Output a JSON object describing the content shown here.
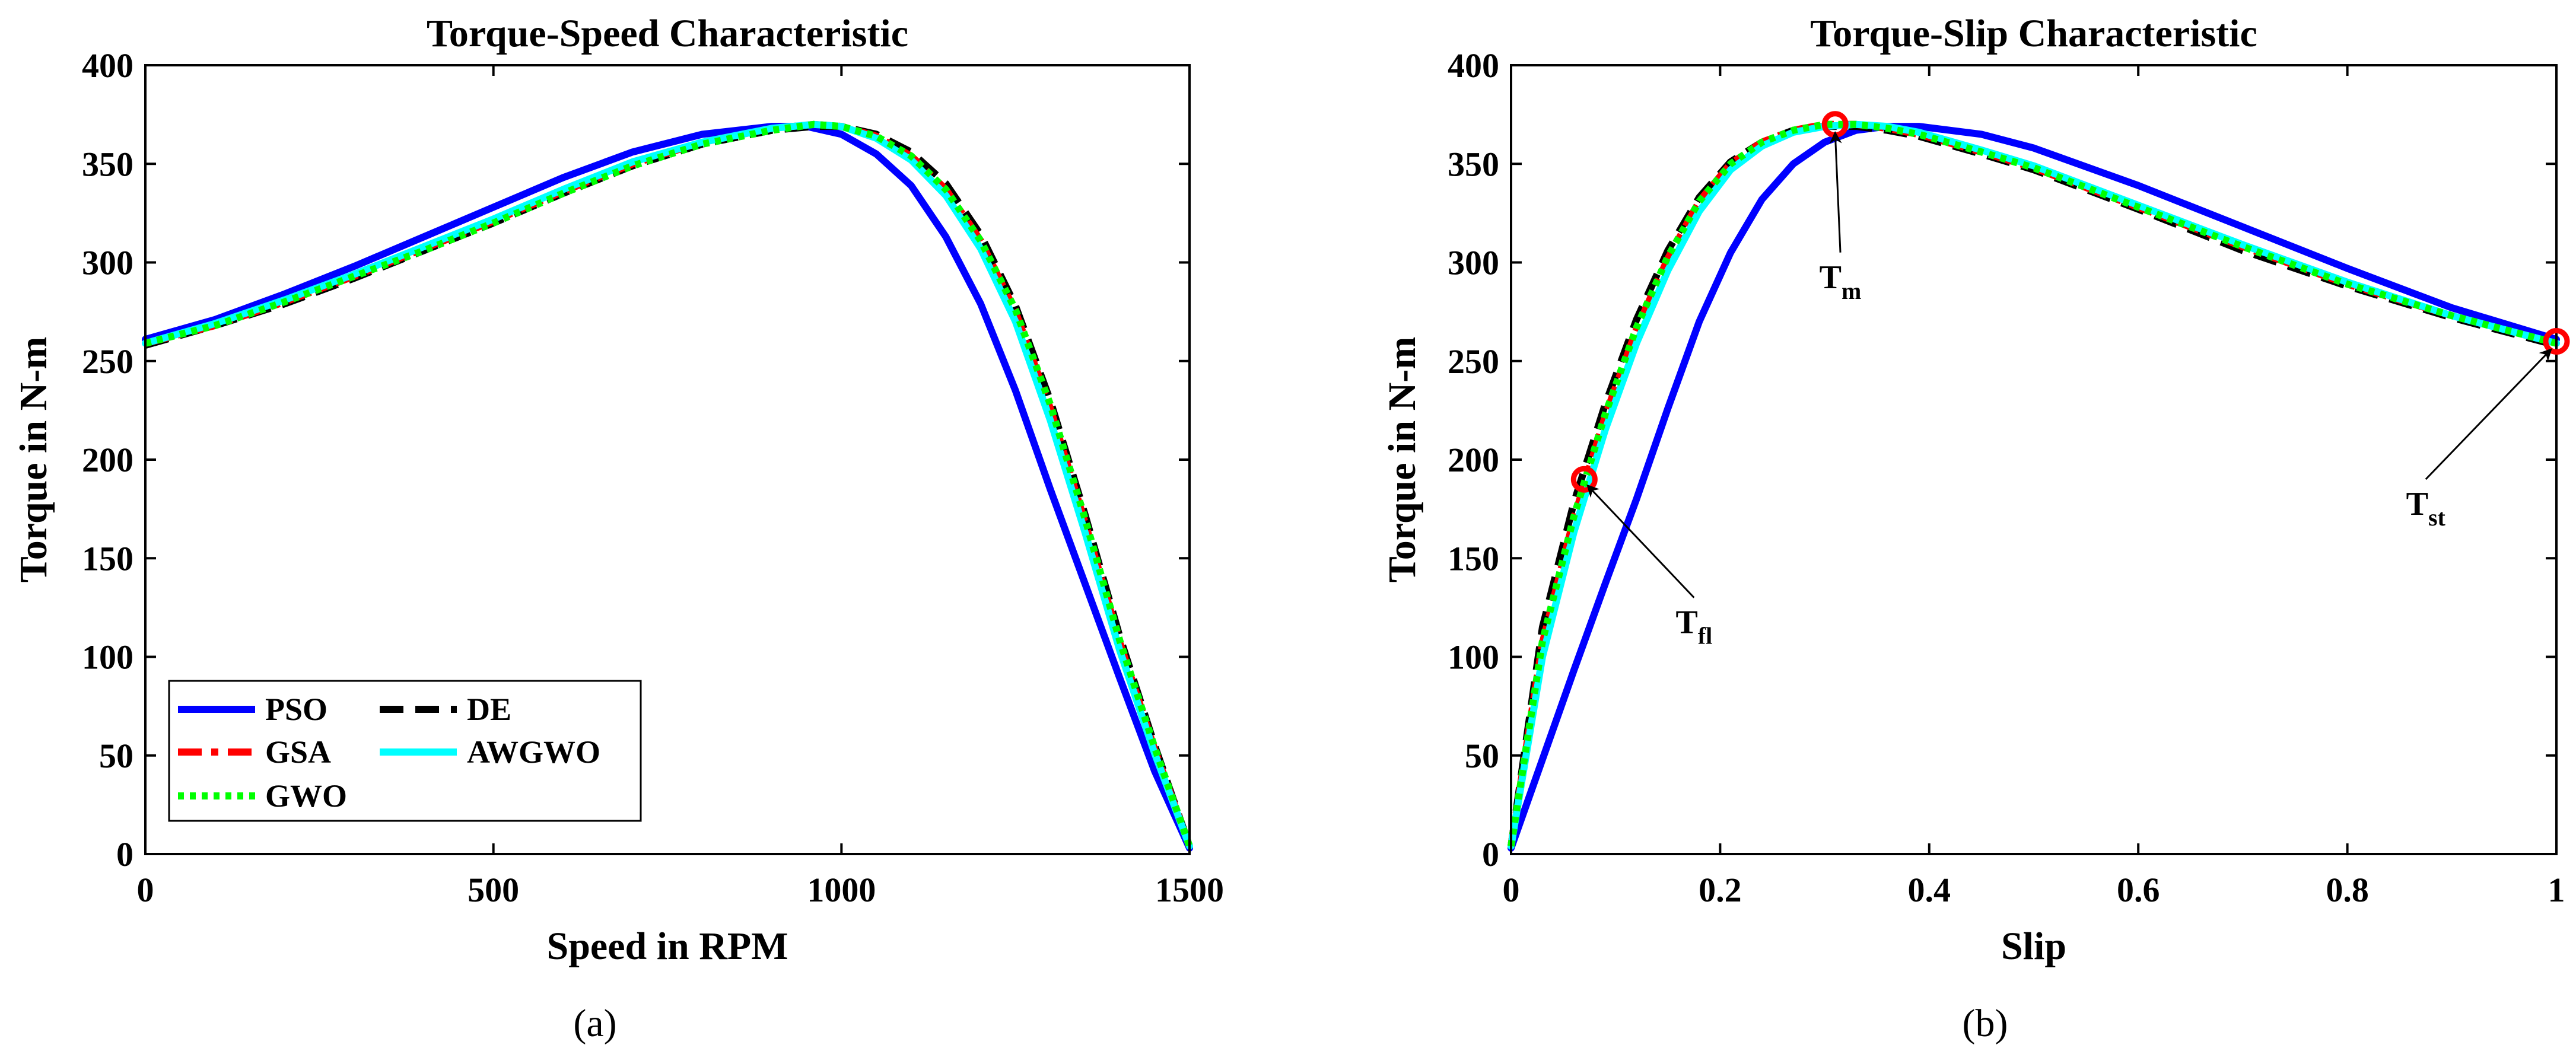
{
  "colors": {
    "PSO": "#0000ff",
    "GSA": "#ff0000",
    "GWO": "#00ff00",
    "DE": "#000000",
    "AWGWO": "#00ffff",
    "marker": "#ff0000"
  },
  "chart_data": [
    {
      "type": "line",
      "title": "Torque-Speed Characteristic",
      "xlabel": "Speed in RPM",
      "ylabel": "Torque in N-m",
      "xlim": [
        0,
        1500
      ],
      "ylim": [
        0,
        400
      ],
      "xticks": [
        0,
        500,
        1000,
        1500
      ],
      "xtick_labels": [
        "0",
        "500",
        "1000",
        "1500"
      ],
      "yticks": [
        0,
        50,
        100,
        150,
        200,
        250,
        300,
        350,
        400
      ],
      "ytick_labels": [
        "0",
        "50",
        "100",
        "150",
        "200",
        "250",
        "300",
        "350",
        "400"
      ],
      "caption": "(a)",
      "legend": {
        "placement": "bottom-left",
        "entries": [
          {
            "name": "PSO",
            "label": "PSO"
          },
          {
            "name": "DE",
            "label": "DE"
          },
          {
            "name": "GSA",
            "label": "GSA"
          },
          {
            "name": "AWGWO",
            "label": "AWGWO"
          },
          {
            "name": "GWO",
            "label": "GWO"
          }
        ]
      },
      "series": [
        {
          "name": "PSO",
          "style": "solid",
          "x": [
            0,
            100,
            200,
            300,
            400,
            500,
            600,
            700,
            800,
            900,
            950,
            1000,
            1050,
            1100,
            1150,
            1200,
            1250,
            1300,
            1350,
            1400,
            1450,
            1500
          ],
          "y": [
            261,
            271,
            284,
            298,
            313,
            328,
            343,
            356,
            365,
            369,
            369,
            365,
            355,
            339,
            313,
            279,
            235,
            185,
            137,
            89,
            42,
            3
          ]
        },
        {
          "name": "DE",
          "style": "dashed",
          "x": [
            0,
            100,
            200,
            300,
            400,
            500,
            600,
            700,
            800,
            900,
            960,
            1000,
            1050,
            1100,
            1150,
            1200,
            1250,
            1300,
            1350,
            1400,
            1450,
            1500
          ],
          "y": [
            258,
            268,
            279,
            292,
            306,
            320,
            335,
            349,
            360,
            367,
            369,
            369,
            365,
            356,
            340,
            314,
            278,
            230,
            172,
            110,
            55,
            4
          ]
        },
        {
          "name": "GSA",
          "style": "dashdot",
          "x": [
            0,
            100,
            200,
            300,
            400,
            500,
            600,
            700,
            800,
            900,
            960,
            1000,
            1050,
            1100,
            1150,
            1200,
            1250,
            1300,
            1350,
            1400,
            1450,
            1500
          ],
          "y": [
            259,
            268,
            280,
            293,
            307,
            321,
            336,
            350,
            361,
            368,
            370,
            369,
            364,
            354,
            337,
            311,
            275,
            226,
            168,
            107,
            53,
            4
          ]
        },
        {
          "name": "AWGWO",
          "style": "solid",
          "x": [
            0,
            100,
            200,
            300,
            400,
            500,
            600,
            700,
            800,
            900,
            960,
            1000,
            1050,
            1100,
            1150,
            1200,
            1250,
            1300,
            1350,
            1400,
            1450,
            1500
          ],
          "y": [
            259,
            269,
            281,
            294,
            308,
            322,
            337,
            351,
            361,
            368,
            370,
            369,
            363,
            352,
            334,
            307,
            270,
            220,
            163,
            103,
            51,
            4
          ]
        },
        {
          "name": "GWO",
          "style": "dotted",
          "x": [
            0,
            100,
            200,
            300,
            400,
            500,
            600,
            700,
            800,
            900,
            960,
            1000,
            1050,
            1100,
            1150,
            1200,
            1250,
            1300,
            1350,
            1400,
            1450,
            1500
          ],
          "y": [
            259,
            268,
            280,
            293,
            306,
            320,
            335,
            349,
            360,
            367,
            370,
            369,
            364,
            354,
            337,
            311,
            276,
            228,
            170,
            108,
            54,
            4
          ]
        }
      ]
    },
    {
      "type": "line",
      "title": "Torque-Slip Characteristic",
      "xlabel": "Slip",
      "ylabel": "Torque in N-m",
      "xlim": [
        0,
        1
      ],
      "ylim": [
        0,
        400
      ],
      "xticks": [
        0,
        0.2,
        0.4,
        0.6,
        0.8,
        1
      ],
      "xtick_labels": [
        "0",
        "0.2",
        "0.4",
        "0.6",
        "0.8",
        "1"
      ],
      "yticks": [
        0,
        50,
        100,
        150,
        200,
        250,
        300,
        350,
        400
      ],
      "ytick_labels": [
        "0",
        "50",
        "100",
        "150",
        "200",
        "250",
        "300",
        "350",
        "400"
      ],
      "caption": "(b)",
      "series": [
        {
          "name": "PSO",
          "style": "solid",
          "x": [
            0,
            0.03,
            0.06,
            0.09,
            0.12,
            0.15,
            0.18,
            0.21,
            0.24,
            0.27,
            0.3,
            0.33,
            0.36,
            0.39,
            0.45,
            0.5,
            0.6,
            0.7,
            0.8,
            0.9,
            1.0
          ],
          "y": [
            3,
            48,
            93,
            137,
            180,
            226,
            270,
            305,
            332,
            350,
            361,
            367,
            369,
            369,
            365,
            358,
            339,
            318,
            297,
            277,
            261
          ]
        },
        {
          "name": "DE",
          "style": "dashed",
          "x": [
            0,
            0.03,
            0.06,
            0.09,
            0.12,
            0.15,
            0.18,
            0.21,
            0.24,
            0.27,
            0.3,
            0.33,
            0.36,
            0.39,
            0.45,
            0.5,
            0.6,
            0.7,
            0.8,
            0.9,
            1.0
          ],
          "y": [
            4,
            115,
            178,
            228,
            271,
            306,
            333,
            351,
            361,
            367,
            369,
            369,
            367,
            364,
            355,
            347,
            327,
            306,
            288,
            272,
            258
          ]
        },
        {
          "name": "GSA",
          "style": "dashdot",
          "x": [
            0,
            0.03,
            0.06,
            0.09,
            0.12,
            0.15,
            0.18,
            0.21,
            0.24,
            0.27,
            0.3,
            0.33,
            0.36,
            0.39,
            0.45,
            0.5,
            0.6,
            0.7,
            0.8,
            0.9,
            1.0
          ],
          "y": [
            4,
            107,
            170,
            222,
            266,
            302,
            331,
            350,
            361,
            367,
            370,
            370,
            368,
            365,
            356,
            348,
            328,
            308,
            289,
            273,
            259
          ]
        },
        {
          "name": "AWGWO",
          "style": "solid",
          "x": [
            0,
            0.03,
            0.06,
            0.09,
            0.12,
            0.15,
            0.18,
            0.21,
            0.24,
            0.27,
            0.3,
            0.33,
            0.36,
            0.39,
            0.45,
            0.5,
            0.6,
            0.7,
            0.8,
            0.9,
            1.0
          ],
          "y": [
            4,
            100,
            163,
            215,
            259,
            296,
            326,
            347,
            359,
            366,
            369,
            370,
            369,
            366,
            357,
            349,
            329,
            309,
            290,
            273,
            259
          ]
        },
        {
          "name": "GWO",
          "style": "dotted",
          "x": [
            0,
            0.03,
            0.06,
            0.09,
            0.12,
            0.15,
            0.18,
            0.21,
            0.24,
            0.27,
            0.3,
            0.33,
            0.36,
            0.39,
            0.45,
            0.5,
            0.6,
            0.7,
            0.8,
            0.9,
            1.0
          ],
          "y": [
            4,
            108,
            171,
            223,
            267,
            303,
            331,
            350,
            361,
            367,
            370,
            370,
            368,
            365,
            356,
            348,
            328,
            308,
            289,
            273,
            259
          ]
        }
      ],
      "markers": [
        {
          "name": "Tfl",
          "x": 0.07,
          "y": 190
        },
        {
          "name": "Tm",
          "x": 0.31,
          "y": 370
        },
        {
          "name": "Tst",
          "x": 1.0,
          "y": 260
        }
      ],
      "annotations": [
        {
          "name": "Tfl",
          "main": "T",
          "sub": "fl",
          "label_x": 0.175,
          "label_y": 115,
          "target_x": 0.073,
          "target_y": 187
        },
        {
          "name": "Tm",
          "main": "T",
          "sub": "m",
          "label_x": 0.315,
          "label_y": 290,
          "target_x": 0.31,
          "target_y": 366
        },
        {
          "name": "Tst",
          "main": "T",
          "sub": "st",
          "label_x": 0.875,
          "label_y": 175,
          "target_x": 0.995,
          "target_y": 256
        }
      ]
    }
  ]
}
